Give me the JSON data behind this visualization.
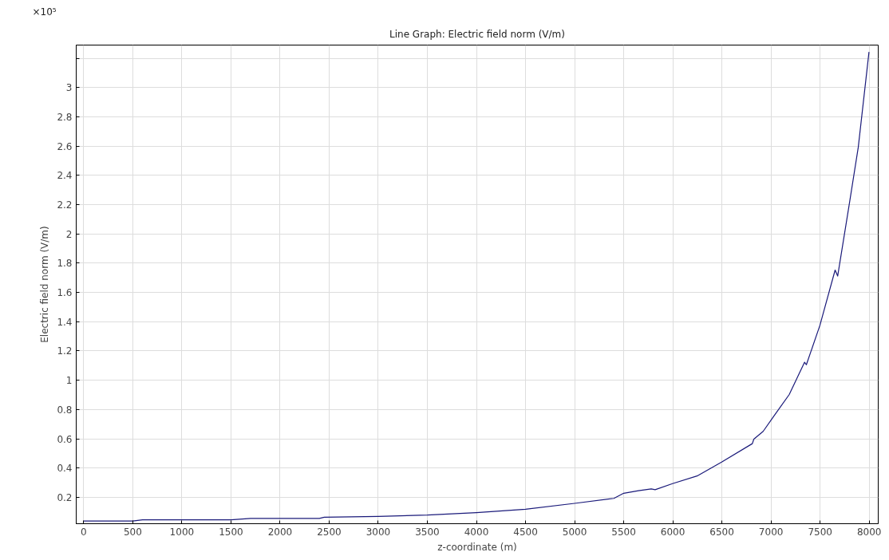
{
  "chart_data": {
    "type": "line",
    "title": "Line Graph: Electric field norm (V/m)",
    "xlabel": "z-coordinate (m)",
    "ylabel": "Electric field norm (V/m)",
    "annotations": [
      "×10⁵"
    ],
    "x": [
      0,
      500,
      600,
      1500,
      1700,
      2400,
      2450,
      3000,
      3500,
      4000,
      4500,
      5000,
      5400,
      5500,
      5650,
      5780,
      5820,
      5997,
      6247,
      6497,
      6810,
      6825,
      6920,
      7029,
      7186,
      7342,
      7360,
      7498,
      7653,
      7679,
      7795,
      7889,
      7998
    ],
    "series": [
      {
        "color": "#1a1a7a",
        "values": [
          0.038,
          0.038,
          0.047,
          0.047,
          0.056,
          0.056,
          0.064,
          0.07,
          0.079,
          0.096,
          0.119,
          0.159,
          0.193,
          0.228,
          0.245,
          0.258,
          0.252,
          0.294,
          0.346,
          0.441,
          0.567,
          0.598,
          0.651,
          0.755,
          0.903,
          1.123,
          1.106,
          1.375,
          1.753,
          1.712,
          2.194,
          2.593,
          3.243
        ]
      }
    ],
    "xlim": [
      -76,
      8092
    ],
    "ylim": [
      0.02,
      3.29
    ],
    "xticks": [
      0,
      500,
      1000,
      1500,
      2000,
      2500,
      3000,
      3500,
      4000,
      4500,
      5000,
      5500,
      6000,
      6500,
      7000,
      7500,
      8000
    ],
    "yticks": [
      0.2,
      0.4,
      0.6,
      0.8,
      1,
      1.2,
      1.4,
      1.6,
      1.8,
      2,
      2.2,
      2.4,
      2.6,
      2.8,
      3,
      {
        "value": 3.2,
        "label": null
      }
    ],
    "grid": true,
    "line_style": "solid",
    "marker": "none"
  }
}
